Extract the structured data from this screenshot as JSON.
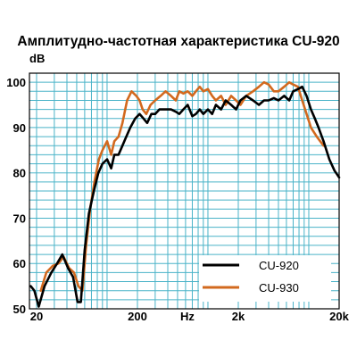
{
  "chart_data": {
    "type": "line",
    "title": "Амплитудно-частотная характеристика CU-920",
    "ylabel": "dB",
    "xlabel": "Hz",
    "x_scale": "log",
    "xlim": [
      17,
      20000
    ],
    "ylim": [
      50,
      102
    ],
    "grid": true,
    "legend_position": "bottom-right",
    "x_ticks": [
      {
        "value": 20,
        "label": "20"
      },
      {
        "value": 200,
        "label": "200"
      },
      {
        "value": 2000,
        "label": "2k"
      },
      {
        "value": 20000,
        "label": "20k"
      }
    ],
    "y_ticks": [
      {
        "value": 50,
        "label": "50"
      },
      {
        "value": 60,
        "label": "60"
      },
      {
        "value": 70,
        "label": "70"
      },
      {
        "value": 80,
        "label": "80"
      },
      {
        "value": 90,
        "label": "90"
      },
      {
        "value": 100,
        "label": "100"
      }
    ],
    "series": [
      {
        "name": "CU-920",
        "color": "#000000",
        "points": [
          [
            17.5,
            55
          ],
          [
            19,
            54
          ],
          [
            21,
            50.5
          ],
          [
            24,
            55
          ],
          [
            28,
            58
          ],
          [
            32,
            60
          ],
          [
            36,
            62
          ],
          [
            41,
            59
          ],
          [
            46,
            57
          ],
          [
            51,
            51.5
          ],
          [
            55,
            51.5
          ],
          [
            60,
            63
          ],
          [
            66,
            71
          ],
          [
            74,
            76
          ],
          [
            82,
            80
          ],
          [
            90,
            82
          ],
          [
            100,
            83
          ],
          [
            110,
            81
          ],
          [
            118,
            84
          ],
          [
            130,
            84
          ],
          [
            142,
            86
          ],
          [
            155,
            88
          ],
          [
            170,
            90
          ],
          [
            190,
            92
          ],
          [
            210,
            93
          ],
          [
            230,
            92
          ],
          [
            250,
            91
          ],
          [
            275,
            93
          ],
          [
            300,
            93
          ],
          [
            330,
            94
          ],
          [
            380,
            94
          ],
          [
            430,
            94
          ],
          [
            480,
            93.5
          ],
          [
            520,
            93
          ],
          [
            570,
            94
          ],
          [
            630,
            95
          ],
          [
            700,
            92.5
          ],
          [
            760,
            93
          ],
          [
            830,
            94
          ],
          [
            900,
            93
          ],
          [
            1000,
            94
          ],
          [
            1100,
            93
          ],
          [
            1200,
            95
          ],
          [
            1350,
            94
          ],
          [
            1500,
            96
          ],
          [
            1700,
            95
          ],
          [
            1900,
            94
          ],
          [
            2100,
            96
          ],
          [
            2400,
            97
          ],
          [
            2800,
            96
          ],
          [
            3200,
            95
          ],
          [
            3600,
            96
          ],
          [
            4000,
            96
          ],
          [
            4500,
            96.5
          ],
          [
            5000,
            96
          ],
          [
            5700,
            97
          ],
          [
            6400,
            96
          ],
          [
            7000,
            98
          ],
          [
            7800,
            98.5
          ],
          [
            8600,
            99
          ],
          [
            9500,
            97
          ],
          [
            10500,
            94
          ],
          [
            11500,
            92
          ],
          [
            12500,
            90
          ],
          [
            14000,
            87
          ],
          [
            16000,
            83
          ],
          [
            18000,
            80.5
          ],
          [
            20000,
            79
          ]
        ]
      },
      {
        "name": "CU-930",
        "color": "#d2691e",
        "points": [
          [
            22,
            54
          ],
          [
            25,
            58
          ],
          [
            29,
            59.5
          ],
          [
            33,
            60
          ],
          [
            37,
            61.5
          ],
          [
            42,
            59
          ],
          [
            47,
            58
          ],
          [
            52,
            55
          ],
          [
            57,
            54
          ],
          [
            62,
            64
          ],
          [
            68,
            72
          ],
          [
            75,
            78
          ],
          [
            83,
            83
          ],
          [
            90,
            85
          ],
          [
            100,
            87
          ],
          [
            110,
            84
          ],
          [
            118,
            87
          ],
          [
            130,
            88
          ],
          [
            142,
            91
          ],
          [
            158,
            96
          ],
          [
            175,
            98
          ],
          [
            195,
            97
          ],
          [
            210,
            96
          ],
          [
            225,
            94
          ],
          [
            245,
            93
          ],
          [
            270,
            95
          ],
          [
            300,
            96
          ],
          [
            340,
            97
          ],
          [
            380,
            98
          ],
          [
            430,
            97
          ],
          [
            480,
            96
          ],
          [
            520,
            98
          ],
          [
            570,
            97.5
          ],
          [
            630,
            98
          ],
          [
            700,
            97
          ],
          [
            760,
            98
          ],
          [
            830,
            99
          ],
          [
            900,
            98
          ],
          [
            1000,
            98.5
          ],
          [
            1100,
            97
          ],
          [
            1200,
            96
          ],
          [
            1350,
            97
          ],
          [
            1500,
            95
          ],
          [
            1700,
            97
          ],
          [
            1900,
            96
          ],
          [
            2100,
            95
          ],
          [
            2400,
            97
          ],
          [
            2800,
            98
          ],
          [
            3200,
            99
          ],
          [
            3600,
            100
          ],
          [
            4000,
            99.5
          ],
          [
            4500,
            98
          ],
          [
            5000,
            98
          ],
          [
            5700,
            99
          ],
          [
            6400,
            100
          ],
          [
            7000,
            99.5
          ],
          [
            7800,
            99
          ],
          [
            8600,
            96
          ],
          [
            9500,
            93
          ],
          [
            10500,
            90
          ],
          [
            12000,
            88
          ],
          [
            14000,
            86
          ]
        ]
      }
    ]
  }
}
